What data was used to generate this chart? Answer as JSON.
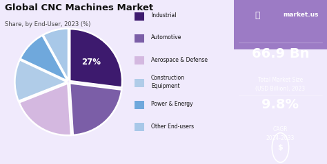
{
  "title": "Global CNC Machines Market",
  "subtitle": "Share, by End-User, 2023 (%)",
  "segments": [
    "Industrial",
    "Automotive",
    "Aerospace & Defense",
    "Construction\nEquipment",
    "Power & Energy",
    "Other End-users"
  ],
  "values": [
    27,
    22,
    20,
    13,
    10,
    8
  ],
  "colors": [
    "#3d1a6e",
    "#7b5ea7",
    "#d4b8e0",
    "#b0cce8",
    "#6fa8dc",
    "#a8c8e8"
  ],
  "explode": [
    0.03,
    0.03,
    0.03,
    0.03,
    0.03,
    0.03
  ],
  "label_pct": "27%",
  "right_panel_bg": "#7b2fbe",
  "market_size": "66.9 Bn",
  "market_size_label": "Total Market Size\n(USD Billion), 2023",
  "cagr": "9.8%",
  "cagr_label": "CAGR\n2024-2033",
  "brand": "market.us",
  "bg_color": "#f0eafc"
}
